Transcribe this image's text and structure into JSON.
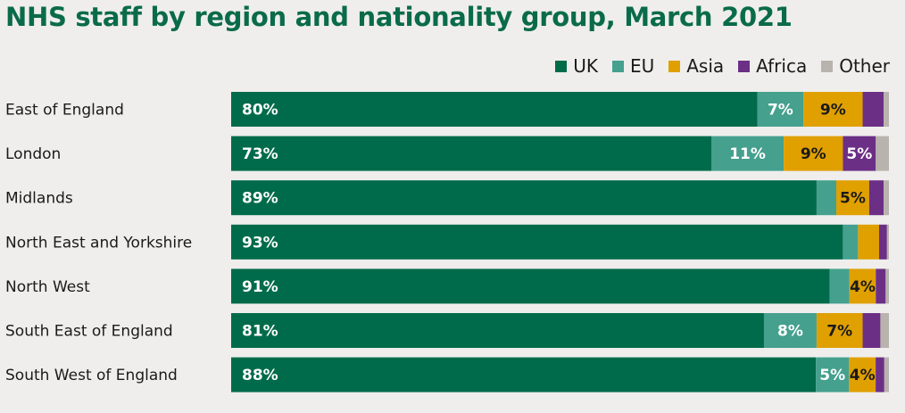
{
  "chart_data": {
    "type": "bar",
    "orientation": "horizontal",
    "stacked": true,
    "title": "NHS staff by region and nationality group, March 2021",
    "categories": [
      "East of England",
      "London",
      "Midlands",
      "North East and Yorkshire",
      "North West",
      "South East of England",
      "South West of England"
    ],
    "series": [
      {
        "name": "UK",
        "color": "#006b4a",
        "label_color": "#ffffff",
        "values": [
          80,
          73,
          89,
          93,
          91,
          81,
          88
        ],
        "labels": [
          "80%",
          "73%",
          "89%",
          "93%",
          "91%",
          "81%",
          "88%"
        ]
      },
      {
        "name": "EU",
        "color": "#45a08e",
        "label_color": "#ffffff",
        "values": [
          7,
          11,
          3,
          2.3,
          3,
          8,
          5
        ],
        "labels": [
          "7%",
          "11%",
          "",
          "",
          "",
          "8%",
          "5%"
        ]
      },
      {
        "name": "Asia",
        "color": "#e0a000",
        "label_color": "#1a1a1a",
        "values": [
          9,
          9,
          5,
          3.2,
          4,
          7,
          4
        ],
        "labels": [
          "9%",
          "9%",
          "5%",
          "",
          "4%",
          "7%",
          "4%"
        ]
      },
      {
        "name": "Africa",
        "color": "#6c2f86",
        "label_color": "#ffffff",
        "values": [
          3.2,
          5,
          2.2,
          1.2,
          1.5,
          2.7,
          1.3
        ],
        "labels": [
          "",
          "5%",
          "",
          "",
          "",
          "",
          ""
        ]
      },
      {
        "name": "Other",
        "color": "#b9b3ae",
        "label_color": "#1a1a1a",
        "values": [
          0.8,
          2,
          0.8,
          0.3,
          0.5,
          1.3,
          0.7
        ],
        "labels": [
          "",
          "",
          "",
          "",
          "",
          "",
          ""
        ]
      }
    ],
    "xlim": [
      0,
      100
    ],
    "legend_position": "top-right",
    "grid": false
  }
}
